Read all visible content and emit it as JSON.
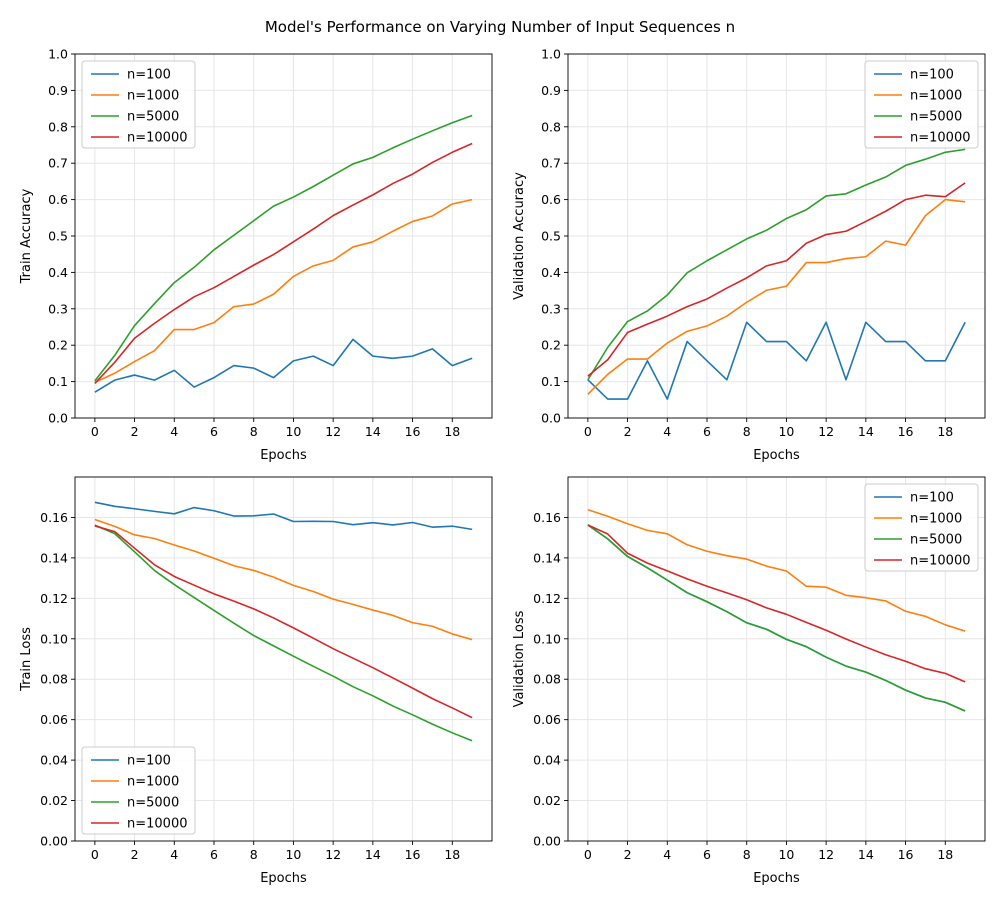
{
  "title": "Model's Performance on Varying Number of Input Sequences n",
  "colors": {
    "n=100": "#1f77b4",
    "n=1000": "#ff7f0e",
    "n=5000": "#2ca02c",
    "n=10000": "#d62728"
  },
  "chart_data": [
    {
      "type": "line",
      "xlabel": "Epochs",
      "ylabel": "Train Accuracy",
      "xlim": [
        -1,
        20
      ],
      "ylim": [
        0,
        1
      ],
      "xticks": [
        0,
        2,
        4,
        6,
        8,
        10,
        12,
        14,
        16,
        18
      ],
      "yticks": [
        0.0,
        0.1,
        0.2,
        0.3,
        0.4,
        0.5,
        0.6,
        0.7,
        0.8,
        0.9,
        1.0
      ],
      "ytick_labels": [
        "0.0",
        "0.1",
        "0.2",
        "0.3",
        "0.4",
        "0.5",
        "0.6",
        "0.7",
        "0.8",
        "0.9",
        "1.0"
      ],
      "grid": true,
      "legend": "top-left",
      "x": [
        0,
        1,
        2,
        3,
        4,
        5,
        6,
        7,
        8,
        9,
        10,
        11,
        12,
        13,
        14,
        15,
        16,
        17,
        18,
        19
      ],
      "series": [
        {
          "name": "n=100",
          "values": [
            0.071,
            0.104,
            0.118,
            0.104,
            0.131,
            0.085,
            0.111,
            0.144,
            0.137,
            0.111,
            0.157,
            0.17,
            0.144,
            0.216,
            0.17,
            0.164,
            0.17,
            0.19,
            0.144,
            0.164
          ]
        },
        {
          "name": "n=1000",
          "values": [
            0.098,
            0.123,
            0.155,
            0.185,
            0.243,
            0.243,
            0.262,
            0.306,
            0.313,
            0.34,
            0.389,
            0.418,
            0.433,
            0.47,
            0.484,
            0.513,
            0.54,
            0.555,
            0.588,
            0.6
          ]
        },
        {
          "name": "n=5000",
          "values": [
            0.102,
            0.172,
            0.254,
            0.314,
            0.372,
            0.414,
            0.462,
            0.502,
            0.542,
            0.582,
            0.607,
            0.636,
            0.667,
            0.698,
            0.716,
            0.742,
            0.766,
            0.789,
            0.811,
            0.831
          ]
        },
        {
          "name": "n=10000",
          "values": [
            0.095,
            0.153,
            0.219,
            0.26,
            0.298,
            0.333,
            0.358,
            0.389,
            0.42,
            0.449,
            0.484,
            0.519,
            0.556,
            0.585,
            0.613,
            0.644,
            0.67,
            0.702,
            0.73,
            0.754
          ]
        }
      ]
    },
    {
      "type": "line",
      "xlabel": "Epochs",
      "ylabel": "Validation Accuracy",
      "xlim": [
        -1,
        20
      ],
      "ylim": [
        0,
        1
      ],
      "xticks": [
        0,
        2,
        4,
        6,
        8,
        10,
        12,
        14,
        16,
        18
      ],
      "yticks": [
        0.0,
        0.1,
        0.2,
        0.3,
        0.4,
        0.5,
        0.6,
        0.7,
        0.8,
        0.9,
        1.0
      ],
      "ytick_labels": [
        "0.0",
        "0.1",
        "0.2",
        "0.3",
        "0.4",
        "0.5",
        "0.6",
        "0.7",
        "0.8",
        "0.9",
        "1.0"
      ],
      "grid": true,
      "legend": "top-right",
      "x": [
        0,
        1,
        2,
        3,
        4,
        5,
        6,
        7,
        8,
        9,
        10,
        11,
        12,
        13,
        14,
        15,
        16,
        17,
        18,
        19
      ],
      "series": [
        {
          "name": "n=100",
          "values": [
            0.105,
            0.052,
            0.052,
            0.157,
            0.052,
            0.21,
            0.157,
            0.105,
            0.263,
            0.21,
            0.21,
            0.157,
            0.263,
            0.105,
            0.263,
            0.21,
            0.21,
            0.157,
            0.157,
            0.263
          ]
        },
        {
          "name": "n=1000",
          "values": [
            0.065,
            0.12,
            0.162,
            0.162,
            0.206,
            0.238,
            0.253,
            0.28,
            0.318,
            0.351,
            0.362,
            0.427,
            0.427,
            0.438,
            0.443,
            0.486,
            0.475,
            0.556,
            0.6,
            0.594
          ]
        },
        {
          "name": "n=5000",
          "values": [
            0.105,
            0.194,
            0.265,
            0.294,
            0.338,
            0.399,
            0.432,
            0.462,
            0.492,
            0.516,
            0.548,
            0.572,
            0.61,
            0.616,
            0.64,
            0.662,
            0.694,
            0.711,
            0.73,
            0.738
          ]
        },
        {
          "name": "n=10000",
          "values": [
            0.115,
            0.16,
            0.235,
            0.258,
            0.28,
            0.306,
            0.327,
            0.357,
            0.385,
            0.418,
            0.432,
            0.48,
            0.504,
            0.513,
            0.54,
            0.568,
            0.6,
            0.612,
            0.608,
            0.646
          ]
        }
      ]
    },
    {
      "type": "line",
      "xlabel": "Epochs",
      "ylabel": "Train Loss",
      "xlim": [
        -1,
        20
      ],
      "ylim": [
        0,
        0.18
      ],
      "xticks": [
        0,
        2,
        4,
        6,
        8,
        10,
        12,
        14,
        16,
        18
      ],
      "yticks": [
        0.0,
        0.02,
        0.04,
        0.06,
        0.08,
        0.1,
        0.12,
        0.14,
        0.16
      ],
      "ytick_labels": [
        "0.00",
        "0.02",
        "0.04",
        "0.06",
        "0.08",
        "0.10",
        "0.12",
        "0.14",
        "0.16"
      ],
      "grid": true,
      "legend": "bottom-left",
      "x": [
        0,
        1,
        2,
        3,
        4,
        5,
        6,
        7,
        8,
        9,
        10,
        11,
        12,
        13,
        14,
        15,
        16,
        17,
        18,
        19
      ],
      "series": [
        {
          "name": "n=100",
          "values": [
            0.1675,
            0.1655,
            0.1643,
            0.163,
            0.1618,
            0.1649,
            0.1633,
            0.1607,
            0.1608,
            0.1617,
            0.158,
            0.1581,
            0.158,
            0.1564,
            0.1574,
            0.1563,
            0.1575,
            0.1552,
            0.1557,
            0.1541
          ]
        },
        {
          "name": "n=1000",
          "values": [
            0.159,
            0.1556,
            0.1514,
            0.1496,
            0.1464,
            0.1434,
            0.1398,
            0.1361,
            0.1338,
            0.1305,
            0.1264,
            0.1234,
            0.1196,
            0.117,
            0.1142,
            0.1116,
            0.108,
            0.1062,
            0.1024,
            0.0996
          ]
        },
        {
          "name": "n=5000",
          "values": [
            0.1562,
            0.152,
            0.143,
            0.1338,
            0.1268,
            0.1204,
            0.114,
            0.1077,
            0.1016,
            0.0965,
            0.0914,
            0.0864,
            0.0815,
            0.0763,
            0.0718,
            0.0668,
            0.0624,
            0.0578,
            0.0535,
            0.0496
          ]
        },
        {
          "name": "n=10000",
          "values": [
            0.1558,
            0.153,
            0.1448,
            0.1366,
            0.1308,
            0.1265,
            0.1222,
            0.1186,
            0.1148,
            0.1103,
            0.1054,
            0.1003,
            0.0951,
            0.0904,
            0.0857,
            0.0807,
            0.0756,
            0.0704,
            0.0658,
            0.061
          ]
        }
      ]
    },
    {
      "type": "line",
      "xlabel": "Epochs",
      "ylabel": "Validation Loss",
      "xlim": [
        -1,
        20
      ],
      "ylim": [
        0,
        0.18
      ],
      "xticks": [
        0,
        2,
        4,
        6,
        8,
        10,
        12,
        14,
        16,
        18
      ],
      "yticks": [
        0.0,
        0.02,
        0.04,
        0.06,
        0.08,
        0.1,
        0.12,
        0.14,
        0.16
      ],
      "ytick_labels": [
        "0.00",
        "0.02",
        "0.04",
        "0.06",
        "0.08",
        "0.10",
        "0.12",
        "0.14",
        "0.16"
      ],
      "grid": true,
      "legend": "top-right",
      "x": [
        0,
        1,
        2,
        3,
        4,
        5,
        6,
        7,
        8,
        9,
        10,
        11,
        12,
        13,
        14,
        15,
        16,
        17,
        18,
        19
      ],
      "series": [
        {
          "name": "n=100",
          "values": [
            0.1563,
            0.1494,
            0.1407,
            0.1351,
            0.129,
            0.1228,
            0.1183,
            0.1134,
            0.1079,
            0.1047,
            0.0997,
            0.0961,
            0.0909,
            0.0865,
            0.0835,
            0.0794,
            0.0746,
            0.0707,
            0.0686,
            0.0643
          ]
        },
        {
          "name": "n=1000",
          "values": [
            0.1638,
            0.1606,
            0.1569,
            0.1536,
            0.1519,
            0.1465,
            0.1433,
            0.1411,
            0.1394,
            0.1359,
            0.1335,
            0.126,
            0.1255,
            0.1215,
            0.1203,
            0.1187,
            0.1136,
            0.1111,
            0.1069,
            0.1038
          ]
        },
        {
          "name": "n=5000",
          "values": [
            0.1563,
            0.1494,
            0.1407,
            0.1351,
            0.129,
            0.1228,
            0.1183,
            0.1134,
            0.1079,
            0.1047,
            0.0997,
            0.0961,
            0.0909,
            0.0865,
            0.0835,
            0.0794,
            0.0746,
            0.0707,
            0.0686,
            0.0643
          ]
        },
        {
          "name": "n=10000",
          "values": [
            0.1563,
            0.1518,
            0.1423,
            0.1374,
            0.1336,
            0.1296,
            0.126,
            0.1227,
            0.1193,
            0.1153,
            0.1121,
            0.1081,
            0.1042,
            0.0999,
            0.0959,
            0.0921,
            0.0889,
            0.0852,
            0.0829,
            0.0787
          ]
        }
      ]
    }
  ]
}
